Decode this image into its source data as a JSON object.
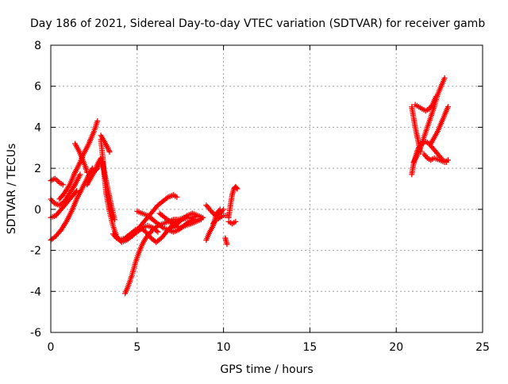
{
  "chart_data": {
    "type": "scatter",
    "title": "Day 186 of 2021, Sidereal Day-to-day VTEC variation (SDTVAR) for receiver gamb",
    "xlabel": "GPS time / hours",
    "ylabel": "SDTVAR / TECUs",
    "xlim": [
      0,
      25
    ],
    "ylim": [
      -6,
      8
    ],
    "xticks": [
      "0",
      "5",
      "10",
      "15",
      "20",
      "25"
    ],
    "yticks": [
      "-6",
      "-4",
      "-2",
      "0",
      "2",
      "4",
      "6",
      "8"
    ],
    "grid": true,
    "marker": "plus",
    "color": "#ff0000",
    "tracks": [
      {
        "x": [
          0.0,
          0.3,
          0.6,
          0.9,
          1.2,
          1.5,
          1.8,
          2.1,
          2.4
        ],
        "y": [
          -1.5,
          -1.3,
          -1.0,
          -0.6,
          -0.1,
          0.5,
          1.0,
          1.5,
          2.0
        ]
      },
      {
        "x": [
          0.0,
          0.2,
          0.5,
          0.8,
          1.1,
          1.4,
          1.7
        ],
        "y": [
          0.5,
          0.3,
          0.2,
          0.4,
          0.8,
          1.2,
          1.7
        ]
      },
      {
        "x": [
          0.0,
          0.3,
          0.6,
          0.9,
          1.2,
          1.5
        ],
        "y": [
          -0.4,
          -0.3,
          0.0,
          0.3,
          0.6,
          0.9
        ]
      },
      {
        "x": [
          0.0,
          0.25,
          0.5,
          0.7
        ],
        "y": [
          1.4,
          1.5,
          1.3,
          1.2
        ]
      },
      {
        "x": [
          0.5,
          0.8,
          1.1,
          1.4,
          1.7,
          1.9,
          2.2,
          2.5,
          2.7
        ],
        "y": [
          0.5,
          0.8,
          1.2,
          1.8,
          2.3,
          2.7,
          3.2,
          3.8,
          4.3
        ]
      },
      {
        "x": [
          1.4,
          1.6,
          1.8,
          2.0,
          2.1
        ],
        "y": [
          3.2,
          2.9,
          2.5,
          2.1,
          1.8
        ]
      },
      {
        "x": [
          2.1,
          2.3,
          2.5,
          2.7,
          2.9
        ],
        "y": [
          1.2,
          1.5,
          1.8,
          2.2,
          2.5
        ]
      },
      {
        "x": [
          2.9,
          3.0,
          3.1,
          3.2,
          3.4,
          3.6,
          3.8,
          4.1,
          4.4,
          4.7,
          5.0,
          5.3,
          5.6,
          5.9,
          6.2,
          6.5,
          6.8,
          7.1,
          7.3
        ],
        "y": [
          3.4,
          2.6,
          1.6,
          0.8,
          -0.1,
          -0.8,
          -1.3,
          -1.6,
          -1.5,
          -1.3,
          -1.0,
          -0.7,
          -0.4,
          -0.1,
          0.2,
          0.4,
          0.6,
          0.7,
          0.6
        ]
      },
      {
        "x": [
          2.6,
          2.7,
          2.8,
          2.9,
          3.0,
          3.1,
          3.3,
          3.5,
          3.7
        ],
        "y": [
          1.9,
          2.0,
          2.2,
          2.4,
          2.3,
          1.8,
          1.0,
          0.2,
          -0.5
        ]
      },
      {
        "x": [
          2.9,
          3.1,
          3.3,
          3.4
        ],
        "y": [
          3.6,
          3.3,
          3.0,
          2.8
        ]
      },
      {
        "x": [
          3.6,
          3.8,
          4.0,
          4.3,
          4.6,
          4.9,
          5.2,
          5.5,
          5.8,
          6.1,
          6.4,
          6.7,
          7.0,
          7.3,
          7.6,
          7.9,
          8.2,
          8.5
        ],
        "y": [
          -1.2,
          -1.4,
          -1.5,
          -1.4,
          -1.2,
          -1.0,
          -0.9,
          -1.1,
          -1.4,
          -1.6,
          -1.4,
          -1.1,
          -0.8,
          -0.6,
          -0.5,
          -0.4,
          -0.4,
          -0.3
        ]
      },
      {
        "x": [
          4.3,
          4.5,
          4.7,
          4.9,
          5.1,
          5.3,
          5.5,
          5.7,
          5.9,
          6.2,
          6.5,
          6.8,
          7.1,
          7.4,
          7.7,
          8.0,
          8.3,
          8.6,
          8.8
        ],
        "y": [
          -4.1,
          -3.7,
          -3.2,
          -2.6,
          -2.1,
          -1.7,
          -1.4,
          -1.2,
          -1.0,
          -0.8,
          -0.7,
          -0.6,
          -0.5,
          -0.5,
          -0.4,
          -0.4,
          -0.5,
          -0.5,
          -0.4
        ]
      },
      {
        "x": [
          4.4,
          4.7,
          5.0,
          5.3,
          5.6,
          5.9,
          6.2
        ],
        "y": [
          -1.4,
          -1.3,
          -1.1,
          -0.9,
          -0.8,
          -0.9,
          -1.1
        ]
      },
      {
        "x": [
          5.0,
          5.3,
          5.6,
          5.9,
          6.2,
          6.5,
          6.8,
          7.1,
          7.4,
          7.7,
          8.0,
          8.3
        ],
        "y": [
          -0.1,
          -0.2,
          -0.3,
          -0.5,
          -0.7,
          -0.9,
          -1.0,
          -1.1,
          -1.0,
          -0.8,
          -0.6,
          -0.5
        ]
      },
      {
        "x": [
          6.3,
          6.6,
          6.9,
          7.2,
          7.5,
          7.8,
          8.1,
          8.4,
          8.7
        ],
        "y": [
          -0.2,
          -0.4,
          -0.6,
          -0.8,
          -0.9,
          -0.8,
          -0.7,
          -0.6,
          -0.5
        ]
      },
      {
        "x": [
          7.0,
          7.3,
          7.6,
          7.9,
          8.2,
          8.5,
          8.8
        ],
        "y": [
          -0.9,
          -0.7,
          -0.5,
          -0.3,
          -0.2,
          -0.3,
          -0.4
        ]
      },
      {
        "x": [
          9.0,
          9.2,
          9.4,
          9.5,
          9.6,
          9.8
        ],
        "y": [
          -1.5,
          -1.1,
          -0.8,
          -0.5,
          -0.2,
          0.0
        ]
      },
      {
        "x": [
          9.0,
          9.2,
          9.4,
          9.6,
          9.8,
          10.0
        ],
        "y": [
          0.2,
          0.0,
          -0.2,
          -0.3,
          -0.2,
          0.0
        ]
      },
      {
        "x": [
          9.4,
          9.6,
          9.8,
          10.0,
          10.2
        ],
        "y": [
          -0.7,
          -0.5,
          -0.4,
          -0.3,
          -0.3
        ]
      },
      {
        "x": [
          10.3,
          10.4,
          10.5,
          10.6,
          10.7,
          10.8
        ],
        "y": [
          -0.4,
          0.2,
          0.7,
          1.0,
          1.1,
          1.0
        ]
      },
      {
        "x": [
          10.3,
          10.5,
          10.7
        ],
        "y": [
          -0.6,
          -0.7,
          -0.6
        ]
      },
      {
        "x": [
          10.1,
          10.2
        ],
        "y": [
          -1.4,
          -1.7
        ]
      },
      {
        "x": [
          20.9,
          21.0,
          21.1,
          21.2,
          21.3,
          21.5,
          21.7,
          21.9,
          22.1,
          22.3,
          22.5,
          22.7,
          22.9
        ],
        "y": [
          1.7,
          2.2,
          2.5,
          2.8,
          3.0,
          3.2,
          3.3,
          3.2,
          3.0,
          2.8,
          2.6,
          2.4,
          2.3
        ]
      },
      {
        "x": [
          20.9,
          21.0,
          21.1,
          21.2,
          21.3,
          21.4
        ],
        "y": [
          5.0,
          4.5,
          4.0,
          3.6,
          3.2,
          2.8
        ]
      },
      {
        "x": [
          21.0,
          21.2,
          21.4,
          21.6,
          21.8,
          22.0,
          22.2,
          22.4,
          22.6,
          22.8
        ],
        "y": [
          2.3,
          2.6,
          3.0,
          3.5,
          4.0,
          4.5,
          5.0,
          5.6,
          6.0,
          6.4
        ]
      },
      {
        "x": [
          21.1,
          21.3,
          21.5,
          21.7,
          21.9,
          22.1,
          22.3
        ],
        "y": [
          5.1,
          5.0,
          4.9,
          4.8,
          4.9,
          5.1,
          5.5
        ]
      },
      {
        "x": [
          22.0,
          22.2,
          22.4,
          22.6,
          22.8,
          23.0
        ],
        "y": [
          3.2,
          3.5,
          3.8,
          4.2,
          4.6,
          5.0
        ]
      },
      {
        "x": [
          21.6,
          21.8,
          22.0,
          22.2,
          22.5,
          22.8,
          23.0
        ],
        "y": [
          2.7,
          2.5,
          2.4,
          2.5,
          2.4,
          2.3,
          2.4
        ]
      }
    ]
  }
}
